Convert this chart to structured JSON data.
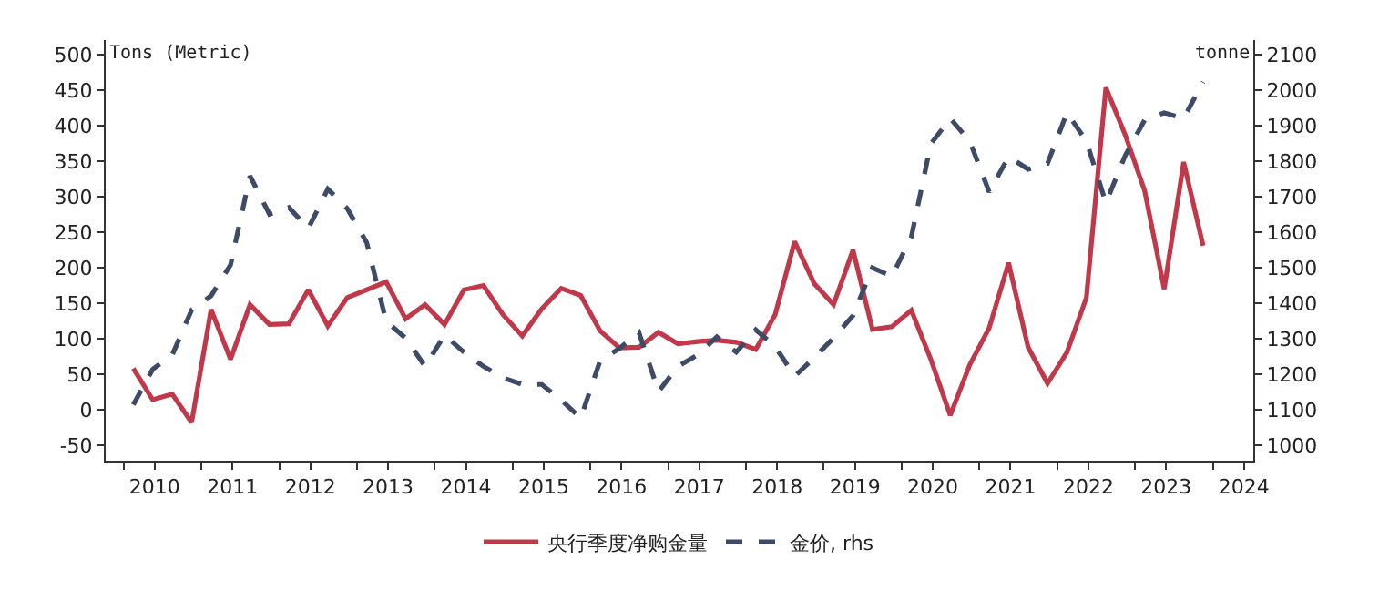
{
  "chart_data": {
    "type": "line",
    "x": [
      2010.125,
      2010.375,
      2010.625,
      2010.875,
      2011.125,
      2011.375,
      2011.625,
      2011.875,
      2012.125,
      2012.375,
      2012.625,
      2012.875,
      2013.125,
      2013.375,
      2013.625,
      2013.875,
      2014.125,
      2014.375,
      2014.625,
      2014.875,
      2015.125,
      2015.375,
      2015.625,
      2015.875,
      2016.125,
      2016.375,
      2016.625,
      2016.875,
      2017.125,
      2017.375,
      2017.625,
      2017.875,
      2018.125,
      2018.375,
      2018.625,
      2018.875,
      2019.125,
      2019.375,
      2019.625,
      2019.875,
      2020.125,
      2020.375,
      2020.625,
      2020.875,
      2021.125,
      2021.375,
      2021.625,
      2021.875,
      2022.125,
      2022.375,
      2022.625,
      2022.875,
      2023.125,
      2023.375,
      2023.625,
      2023.875
    ],
    "series": [
      {
        "name": "央行季度净购金量",
        "color": "#c0394b",
        "line_style": "solid",
        "values": [
          58,
          14,
          22,
          -18,
          141,
          71,
          148,
          120,
          121,
          169,
          118,
          158,
          169,
          180,
          128,
          148,
          120,
          169,
          175,
          134,
          104,
          142,
          171,
          161,
          111,
          87,
          88,
          109,
          93,
          96,
          98,
          95,
          85,
          134,
          237,
          178,
          148,
          225,
          113,
          117,
          140,
          71,
          -8,
          63,
          115,
          207,
          88,
          37,
          81,
          158,
          454,
          387,
          308,
          170,
          349,
          231
        ]
      },
      {
        "name": "金价, rhs",
        "color": "#3d4b66",
        "line_style": "dashed",
        "axis": "y2",
        "values": [
          1114,
          1214,
          1254,
          1381,
          1421,
          1508,
          1759,
          1651,
          1670,
          1611,
          1722,
          1667,
          1571,
          1349,
          1302,
          1222,
          1310,
          1262,
          1222,
          1190,
          1171,
          1171,
          1127,
          1076,
          1238,
          1273,
          1317,
          1151,
          1222,
          1254,
          1305,
          1262,
          1325,
          1278,
          1194,
          1246,
          1302,
          1365,
          1500,
          1476,
          1587,
          1849,
          1921,
          1857,
          1714,
          1813,
          1778,
          1794,
          1937,
          1857,
          1683,
          1817,
          1917,
          1937,
          1921,
          2024
        ]
      }
    ],
    "ylabel": "Tons (Metric)",
    "y2label": "tonne",
    "xlim": [
      2009.77,
      2024.52
    ],
    "xticks": [
      {
        "value": 2010,
        "label": null
      },
      {
        "value": 2010.4,
        "label": "2010"
      },
      {
        "value": 2011,
        "label": null
      },
      {
        "value": 2011.4,
        "label": "2011"
      },
      {
        "value": 2012,
        "label": null
      },
      {
        "value": 2012.4,
        "label": "2012"
      },
      {
        "value": 2013,
        "label": null
      },
      {
        "value": 2013.4,
        "label": "2013"
      },
      {
        "value": 2014,
        "label": null
      },
      {
        "value": 2014.4,
        "label": "2014"
      },
      {
        "value": 2015,
        "label": null
      },
      {
        "value": 2015.4,
        "label": "2015"
      },
      {
        "value": 2016,
        "label": null
      },
      {
        "value": 2016.4,
        "label": "2016"
      },
      {
        "value": 2017,
        "label": null
      },
      {
        "value": 2017.4,
        "label": "2017"
      },
      {
        "value": 2018,
        "label": null
      },
      {
        "value": 2018.4,
        "label": "2018"
      },
      {
        "value": 2019,
        "label": null
      },
      {
        "value": 2019.4,
        "label": "2019"
      },
      {
        "value": 2020,
        "label": null
      },
      {
        "value": 2020.4,
        "label": "2020"
      },
      {
        "value": 2021,
        "label": null
      },
      {
        "value": 2021.4,
        "label": "2021"
      },
      {
        "value": 2022,
        "label": null
      },
      {
        "value": 2022.4,
        "label": "2022"
      },
      {
        "value": 2023,
        "label": null
      },
      {
        "value": 2023.4,
        "label": "2023"
      },
      {
        "value": 2024,
        "label": null
      },
      {
        "value": 2024.4,
        "label": "2024"
      }
    ],
    "ylim": [
      -72,
      521
    ],
    "yticks": [
      -50,
      0,
      50,
      100,
      150,
      200,
      250,
      300,
      350,
      400,
      450,
      500
    ],
    "y2lim": [
      956,
      2142
    ],
    "y2ticks": [
      1000,
      1100,
      1200,
      1300,
      1400,
      1500,
      1600,
      1700,
      1800,
      1900,
      2000,
      2100
    ],
    "legend": "bottom",
    "marker": "none"
  }
}
